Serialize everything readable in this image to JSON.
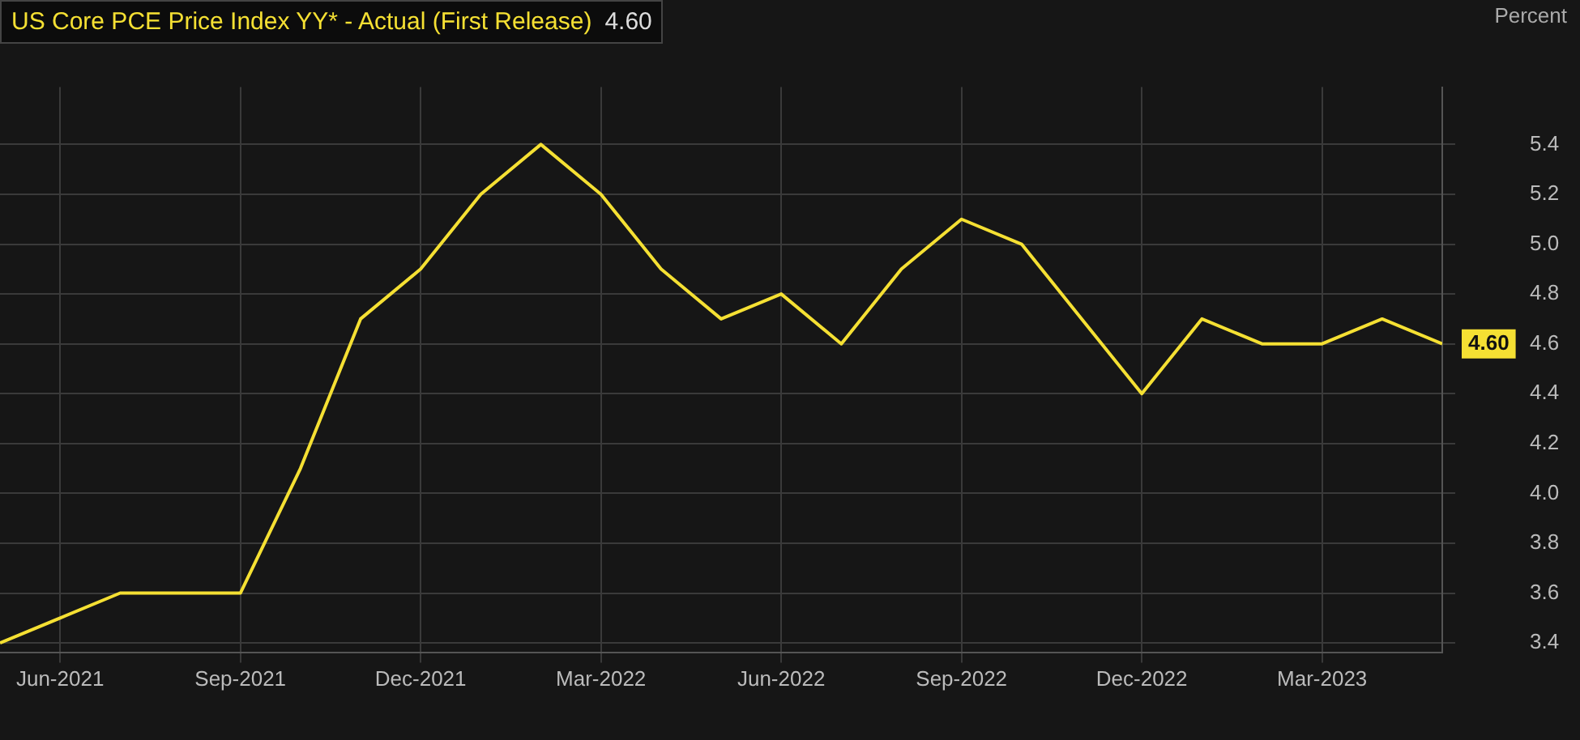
{
  "chart_data": {
    "type": "line",
    "title": "US Core PCE Price Index YY* - Actual (First Release)",
    "subtitle": "4.60",
    "ylabel": "Percent",
    "x": [
      "2021-05",
      "2021-06",
      "2021-07",
      "2021-08",
      "2021-09",
      "2021-10",
      "2021-11",
      "2021-12",
      "2022-01",
      "2022-02",
      "2022-03",
      "2022-04",
      "2022-05",
      "2022-06",
      "2022-07",
      "2022-08",
      "2022-09",
      "2022-10",
      "2022-11",
      "2022-12",
      "2023-01",
      "2023-02",
      "2023-03",
      "2023-04",
      "2023-05"
    ],
    "series": [
      {
        "color": "#f5e033",
        "values": [
          3.4,
          3.5,
          3.6,
          3.6,
          3.6,
          4.1,
          4.7,
          4.9,
          5.2,
          5.4,
          5.2,
          4.9,
          4.7,
          4.8,
          4.6,
          4.9,
          5.1,
          5.0,
          4.7,
          4.4,
          4.7,
          4.6,
          4.6,
          4.7,
          4.6
        ]
      }
    ],
    "xlim": [
      "2021-05",
      "2023-05"
    ],
    "xticks": [
      {
        "value": "2021-06",
        "label": "Jun-2021"
      },
      {
        "value": "2021-09",
        "label": "Sep-2021"
      },
      {
        "value": "2021-12",
        "label": "Dec-2021"
      },
      {
        "value": "2022-03",
        "label": "Mar-2022"
      },
      {
        "value": "2022-06",
        "label": "Jun-2022"
      },
      {
        "value": "2022-09",
        "label": "Sep-2022"
      },
      {
        "value": "2022-12",
        "label": "Dec-2022"
      },
      {
        "value": "2023-03",
        "label": "Mar-2023"
      }
    ],
    "ylim": [
      3.36,
      5.63
    ],
    "yticks": [
      {
        "value": 3.4,
        "label": "3.4"
      },
      {
        "value": 3.6,
        "label": "3.6"
      },
      {
        "value": 3.8,
        "label": "3.8"
      },
      {
        "value": 4.0,
        "label": "4.0"
      },
      {
        "value": 4.2,
        "label": "4.2"
      },
      {
        "value": 4.4,
        "label": "4.4"
      },
      {
        "value": 4.6,
        "label": "4.6"
      },
      {
        "value": 4.8,
        "label": "4.8"
      },
      {
        "value": 5.0,
        "label": "5.0"
      },
      {
        "value": 5.2,
        "label": "5.2"
      },
      {
        "value": 5.4,
        "label": "5.4"
      }
    ],
    "annotations": [
      {
        "text": "4.60",
        "x": "2023-05",
        "y": 4.6
      }
    ],
    "grid": true,
    "legend": false,
    "marker": "none",
    "line_style": "solid"
  }
}
